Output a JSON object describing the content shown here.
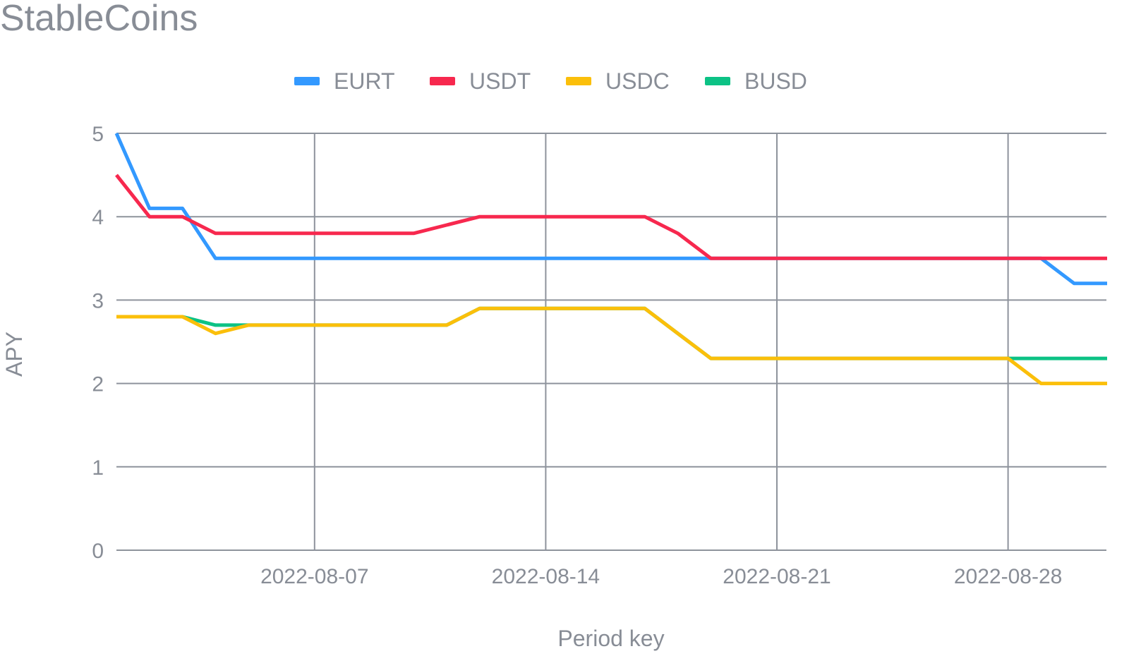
{
  "chart_data": {
    "type": "line",
    "title": "StableCoins",
    "xlabel": "Period key",
    "ylabel": "APY",
    "ylim": [
      0,
      5
    ],
    "yticks": [
      "0",
      "1",
      "2",
      "3",
      "4",
      "5"
    ],
    "xticks": [
      "2022-08-07",
      "2022-08-14",
      "2022-08-21",
      "2022-08-28"
    ],
    "x": [
      "2022-08-01",
      "2022-08-02",
      "2022-08-03",
      "2022-08-04",
      "2022-08-05",
      "2022-08-06",
      "2022-08-07",
      "2022-08-08",
      "2022-08-09",
      "2022-08-10",
      "2022-08-11",
      "2022-08-12",
      "2022-08-13",
      "2022-08-14",
      "2022-08-15",
      "2022-08-16",
      "2022-08-17",
      "2022-08-18",
      "2022-08-19",
      "2022-08-20",
      "2022-08-21",
      "2022-08-22",
      "2022-08-23",
      "2022-08-24",
      "2022-08-25",
      "2022-08-26",
      "2022-08-27",
      "2022-08-28",
      "2022-08-29",
      "2022-08-30",
      "2022-08-31"
    ],
    "grid": true,
    "legend_position": "top",
    "series": [
      {
        "name": "EURT",
        "color": "#3399ff",
        "values": [
          5.0,
          4.1,
          4.1,
          3.5,
          3.5,
          3.5,
          3.5,
          3.5,
          3.5,
          3.5,
          3.5,
          3.5,
          3.5,
          3.5,
          3.5,
          3.5,
          3.5,
          3.5,
          3.5,
          3.5,
          3.5,
          3.5,
          3.5,
          3.5,
          3.5,
          3.5,
          3.5,
          3.5,
          3.5,
          3.2,
          3.2
        ]
      },
      {
        "name": "USDT",
        "color": "#f7284e",
        "values": [
          4.5,
          4.0,
          4.0,
          3.8,
          3.8,
          3.8,
          3.8,
          3.8,
          3.8,
          3.8,
          3.9,
          4.0,
          4.0,
          4.0,
          4.0,
          4.0,
          4.0,
          3.8,
          3.5,
          3.5,
          3.5,
          3.5,
          3.5,
          3.5,
          3.5,
          3.5,
          3.5,
          3.5,
          3.5,
          3.5,
          3.5
        ]
      },
      {
        "name": "USDC",
        "color": "#fbbf0a",
        "values": [
          2.8,
          2.8,
          2.8,
          2.6,
          2.7,
          2.7,
          2.7,
          2.7,
          2.7,
          2.7,
          2.7,
          2.9,
          2.9,
          2.9,
          2.9,
          2.9,
          2.9,
          2.6,
          2.3,
          2.3,
          2.3,
          2.3,
          2.3,
          2.3,
          2.3,
          2.3,
          2.3,
          2.3,
          2.0,
          2.0,
          2.0
        ]
      },
      {
        "name": "BUSD",
        "color": "#0cc285",
        "values": [
          2.8,
          2.8,
          2.8,
          2.7,
          2.7,
          2.7,
          2.7,
          2.7,
          2.7,
          2.7,
          2.7,
          2.9,
          2.9,
          2.9,
          2.9,
          2.9,
          2.9,
          2.6,
          2.3,
          2.3,
          2.3,
          2.3,
          2.3,
          2.3,
          2.3,
          2.3,
          2.3,
          2.3,
          2.3,
          2.3,
          2.3
        ]
      }
    ]
  }
}
